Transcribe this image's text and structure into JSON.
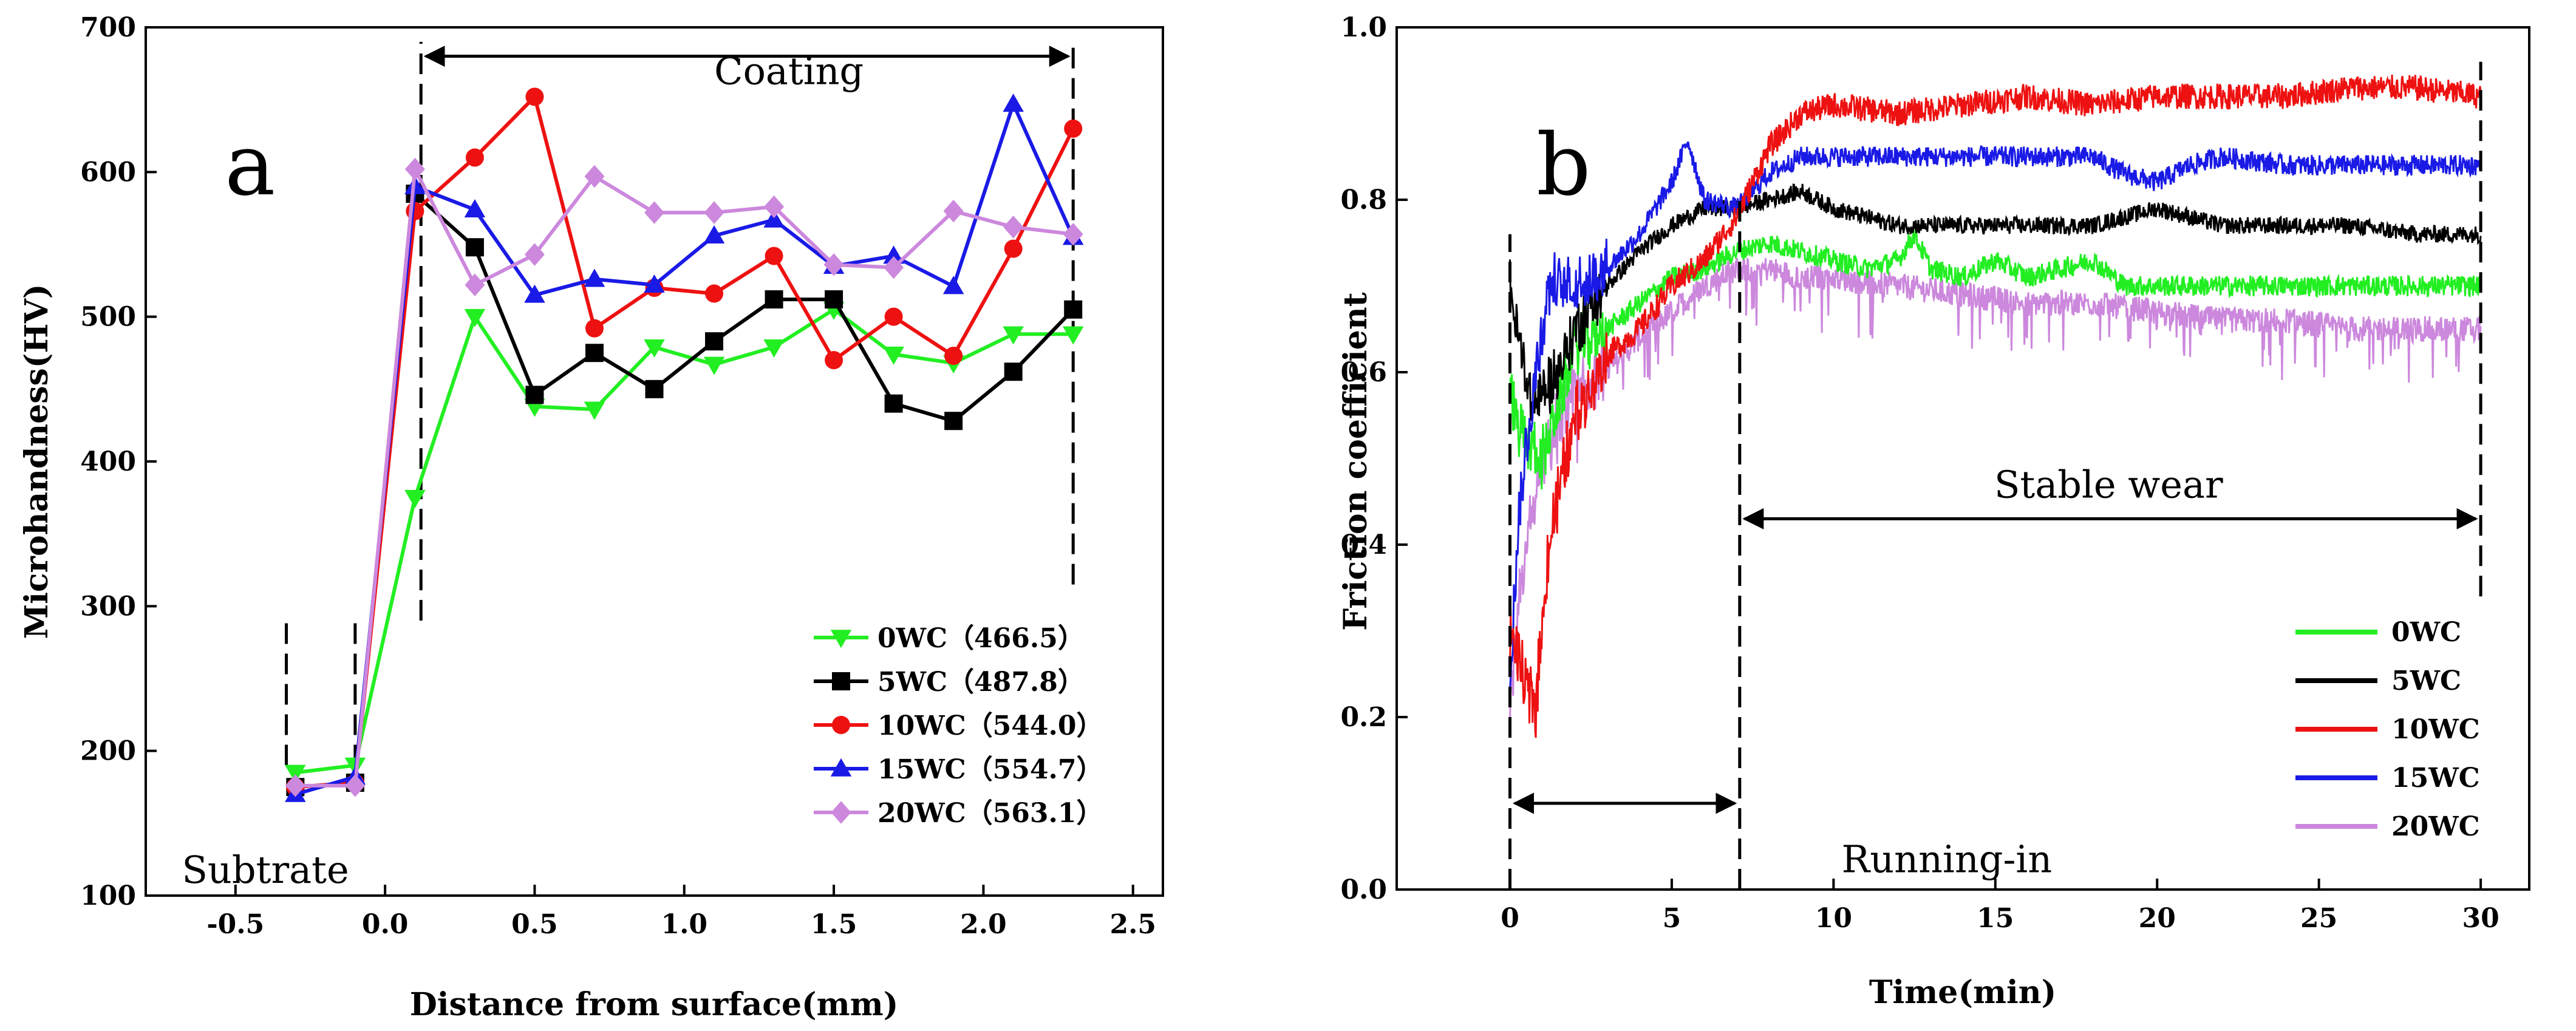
{
  "chart_data": [
    {
      "type": "line",
      "panel_label": "a",
      "xlabel": "Distance from surface(mm)",
      "ylabel": "Microhandness(HV)",
      "xlim": [
        -0.8,
        2.6
      ],
      "ylim": [
        100,
        700
      ],
      "xticks": [
        -0.5,
        0.0,
        0.5,
        1.0,
        1.5,
        2.0,
        2.5
      ],
      "xtick_labels": [
        "-0.5",
        "0.0",
        "0.5",
        "1.0",
        "1.5",
        "2.0",
        "2.5"
      ],
      "yticks": [
        100,
        200,
        300,
        400,
        500,
        600,
        700
      ],
      "ytick_labels": [
        "100",
        "200",
        "300",
        "400",
        "500",
        "600",
        "700"
      ],
      "x": [
        -0.3,
        -0.1,
        0.1,
        0.3,
        0.5,
        0.7,
        0.9,
        1.1,
        1.3,
        1.5,
        1.7,
        1.9,
        2.1,
        2.3
      ],
      "series": [
        {
          "name": "0WC（466.5）",
          "color": "#22ee22",
          "marker": "triangle-down",
          "values": [
            185,
            190,
            375,
            500,
            438,
            436,
            479,
            467,
            479,
            505,
            474,
            468,
            488,
            488
          ]
        },
        {
          "name": "5WC（487.8）",
          "color": "#000000",
          "marker": "square",
          "values": [
            175,
            178,
            585,
            548,
            446,
            475,
            450,
            483,
            512,
            512,
            440,
            428,
            462,
            505
          ]
        },
        {
          "name": "10WC（544.0）",
          "color": "#ee1111",
          "marker": "circle",
          "values": [
            175,
            178,
            573,
            610,
            652,
            492,
            520,
            516,
            542,
            470,
            500,
            473,
            547,
            630
          ]
        },
        {
          "name": "15WC（554.7）",
          "color": "#1a1ae6",
          "marker": "triangle-up",
          "values": [
            170,
            182,
            590,
            574,
            515,
            526,
            522,
            556,
            567,
            535,
            542,
            521,
            647,
            555
          ]
        },
        {
          "name": "20WC（563.1）",
          "color": "#cc88dd",
          "marker": "diamond",
          "values": [
            176,
            176,
            602,
            522,
            543,
            597,
            572,
            572,
            576,
            536,
            534,
            573,
            562,
            557
          ]
        }
      ],
      "annotations": [
        {
          "text": "Coating",
          "x": 1.35,
          "y": 670
        },
        {
          "text": "Subtrate",
          "x": -0.4,
          "y": 118
        }
      ],
      "vlines": [
        {
          "x": -0.33,
          "y0": 190,
          "y1": 290
        },
        {
          "x": -0.1,
          "y0": 190,
          "y1": 290
        },
        {
          "x": 0.12,
          "y0": 290,
          "y1": 690
        },
        {
          "x": 2.3,
          "y0": 315,
          "y1": 690
        }
      ],
      "arrow": {
        "x0": 0.12,
        "x1": 2.3,
        "y": 680
      },
      "legend_position": "bottom-right"
    },
    {
      "type": "line",
      "panel_label": "b",
      "xlabel": "Time(min)",
      "ylabel": "Friction coefficient",
      "xlim": [
        -3.5,
        31.5
      ],
      "ylim": [
        0.0,
        1.0
      ],
      "xticks": [
        0,
        5,
        10,
        15,
        20,
        25,
        30
      ],
      "xtick_labels": [
        "0",
        "5",
        "10",
        "15",
        "20",
        "25",
        "30"
      ],
      "yticks": [
        0.0,
        0.2,
        0.4,
        0.6,
        0.8,
        1.0
      ],
      "ytick_labels": [
        "0.0",
        "0.2",
        "0.4",
        "0.6",
        "0.8",
        "1.0"
      ],
      "series": [
        {
          "name": "0WC",
          "color": "#22ee22",
          "noise": 0.012,
          "x": [
            0,
            0.3,
            1,
            1.5,
            2,
            3,
            4,
            5,
            6,
            7,
            8,
            9,
            10,
            11,
            12,
            12.5,
            13,
            14,
            15,
            16,
            17,
            18,
            19,
            20,
            22,
            24,
            26,
            28,
            30
          ],
          "values": [
            0.58,
            0.53,
            0.5,
            0.56,
            0.63,
            0.65,
            0.68,
            0.71,
            0.72,
            0.74,
            0.75,
            0.74,
            0.73,
            0.72,
            0.73,
            0.76,
            0.72,
            0.71,
            0.73,
            0.71,
            0.72,
            0.73,
            0.7,
            0.7,
            0.7,
            0.7,
            0.7,
            0.7,
            0.7
          ]
        },
        {
          "name": "5WC",
          "color": "#000000",
          "noise": 0.01,
          "x": [
            0,
            0.2,
            0.7,
            1.5,
            2,
            3,
            4,
            5,
            6,
            7,
            8,
            9,
            10,
            11,
            12,
            14,
            16,
            18,
            20,
            22,
            24,
            26,
            28,
            30
          ],
          "values": [
            0.71,
            0.65,
            0.56,
            0.6,
            0.65,
            0.7,
            0.74,
            0.77,
            0.79,
            0.79,
            0.8,
            0.81,
            0.79,
            0.78,
            0.77,
            0.77,
            0.77,
            0.77,
            0.79,
            0.77,
            0.77,
            0.77,
            0.76,
            0.76
          ]
        },
        {
          "name": "10WC",
          "color": "#ee1111",
          "noise": 0.015,
          "x": [
            0,
            0.5,
            0.8,
            1.2,
            2,
            3,
            4,
            5,
            6,
            7,
            8,
            9,
            10,
            12,
            14,
            16,
            18,
            20,
            22,
            24,
            26,
            28,
            30
          ],
          "values": [
            0.3,
            0.23,
            0.22,
            0.4,
            0.55,
            0.62,
            0.65,
            0.7,
            0.73,
            0.78,
            0.86,
            0.9,
            0.91,
            0.9,
            0.91,
            0.92,
            0.91,
            0.92,
            0.92,
            0.92,
            0.93,
            0.93,
            0.92
          ]
        },
        {
          "name": "15WC",
          "color": "#1a1ae6",
          "noise": 0.012,
          "x": [
            0,
            0.3,
            0.8,
            1.2,
            2,
            3,
            4,
            5,
            5.5,
            6,
            7,
            8,
            9,
            10,
            12,
            14,
            16,
            18,
            19,
            20,
            21,
            22,
            24,
            26,
            28,
            30
          ],
          "values": [
            0.25,
            0.45,
            0.6,
            0.7,
            0.7,
            0.72,
            0.76,
            0.82,
            0.87,
            0.8,
            0.79,
            0.83,
            0.85,
            0.85,
            0.85,
            0.85,
            0.85,
            0.85,
            0.83,
            0.82,
            0.84,
            0.85,
            0.84,
            0.84,
            0.84,
            0.84
          ]
        },
        {
          "name": "20WC",
          "color": "#cc88dd",
          "noise": 0.015,
          "x": [
            0,
            0.3,
            1,
            2,
            3,
            4,
            5,
            6,
            7,
            8,
            9,
            10,
            12,
            14,
            16,
            18,
            20,
            22,
            24,
            26,
            28,
            30
          ],
          "values": [
            0.2,
            0.35,
            0.5,
            0.58,
            0.6,
            0.64,
            0.67,
            0.7,
            0.72,
            0.72,
            0.71,
            0.71,
            0.7,
            0.69,
            0.68,
            0.68,
            0.67,
            0.66,
            0.66,
            0.65,
            0.65,
            0.65
          ]
        }
      ],
      "annotations": [
        {
          "text": "Stable wear",
          "x": 18.5,
          "y": 0.47
        },
        {
          "text": "Running-in",
          "x": 13.5,
          "y": 0.02
        }
      ],
      "vlines": [
        {
          "x": 0,
          "y0": 0.0,
          "y1": 0.76
        },
        {
          "x": 7.1,
          "y0": 0.0,
          "y1": 0.8
        },
        {
          "x": 30,
          "y0": 0.34,
          "y1": 0.96
        }
      ],
      "arrows": [
        {
          "x0": 0,
          "x1": 7.1,
          "y": 0.1
        },
        {
          "x0": 7.1,
          "x1": 30,
          "y": 0.43
        }
      ],
      "legend_position": "bottom-right"
    }
  ]
}
